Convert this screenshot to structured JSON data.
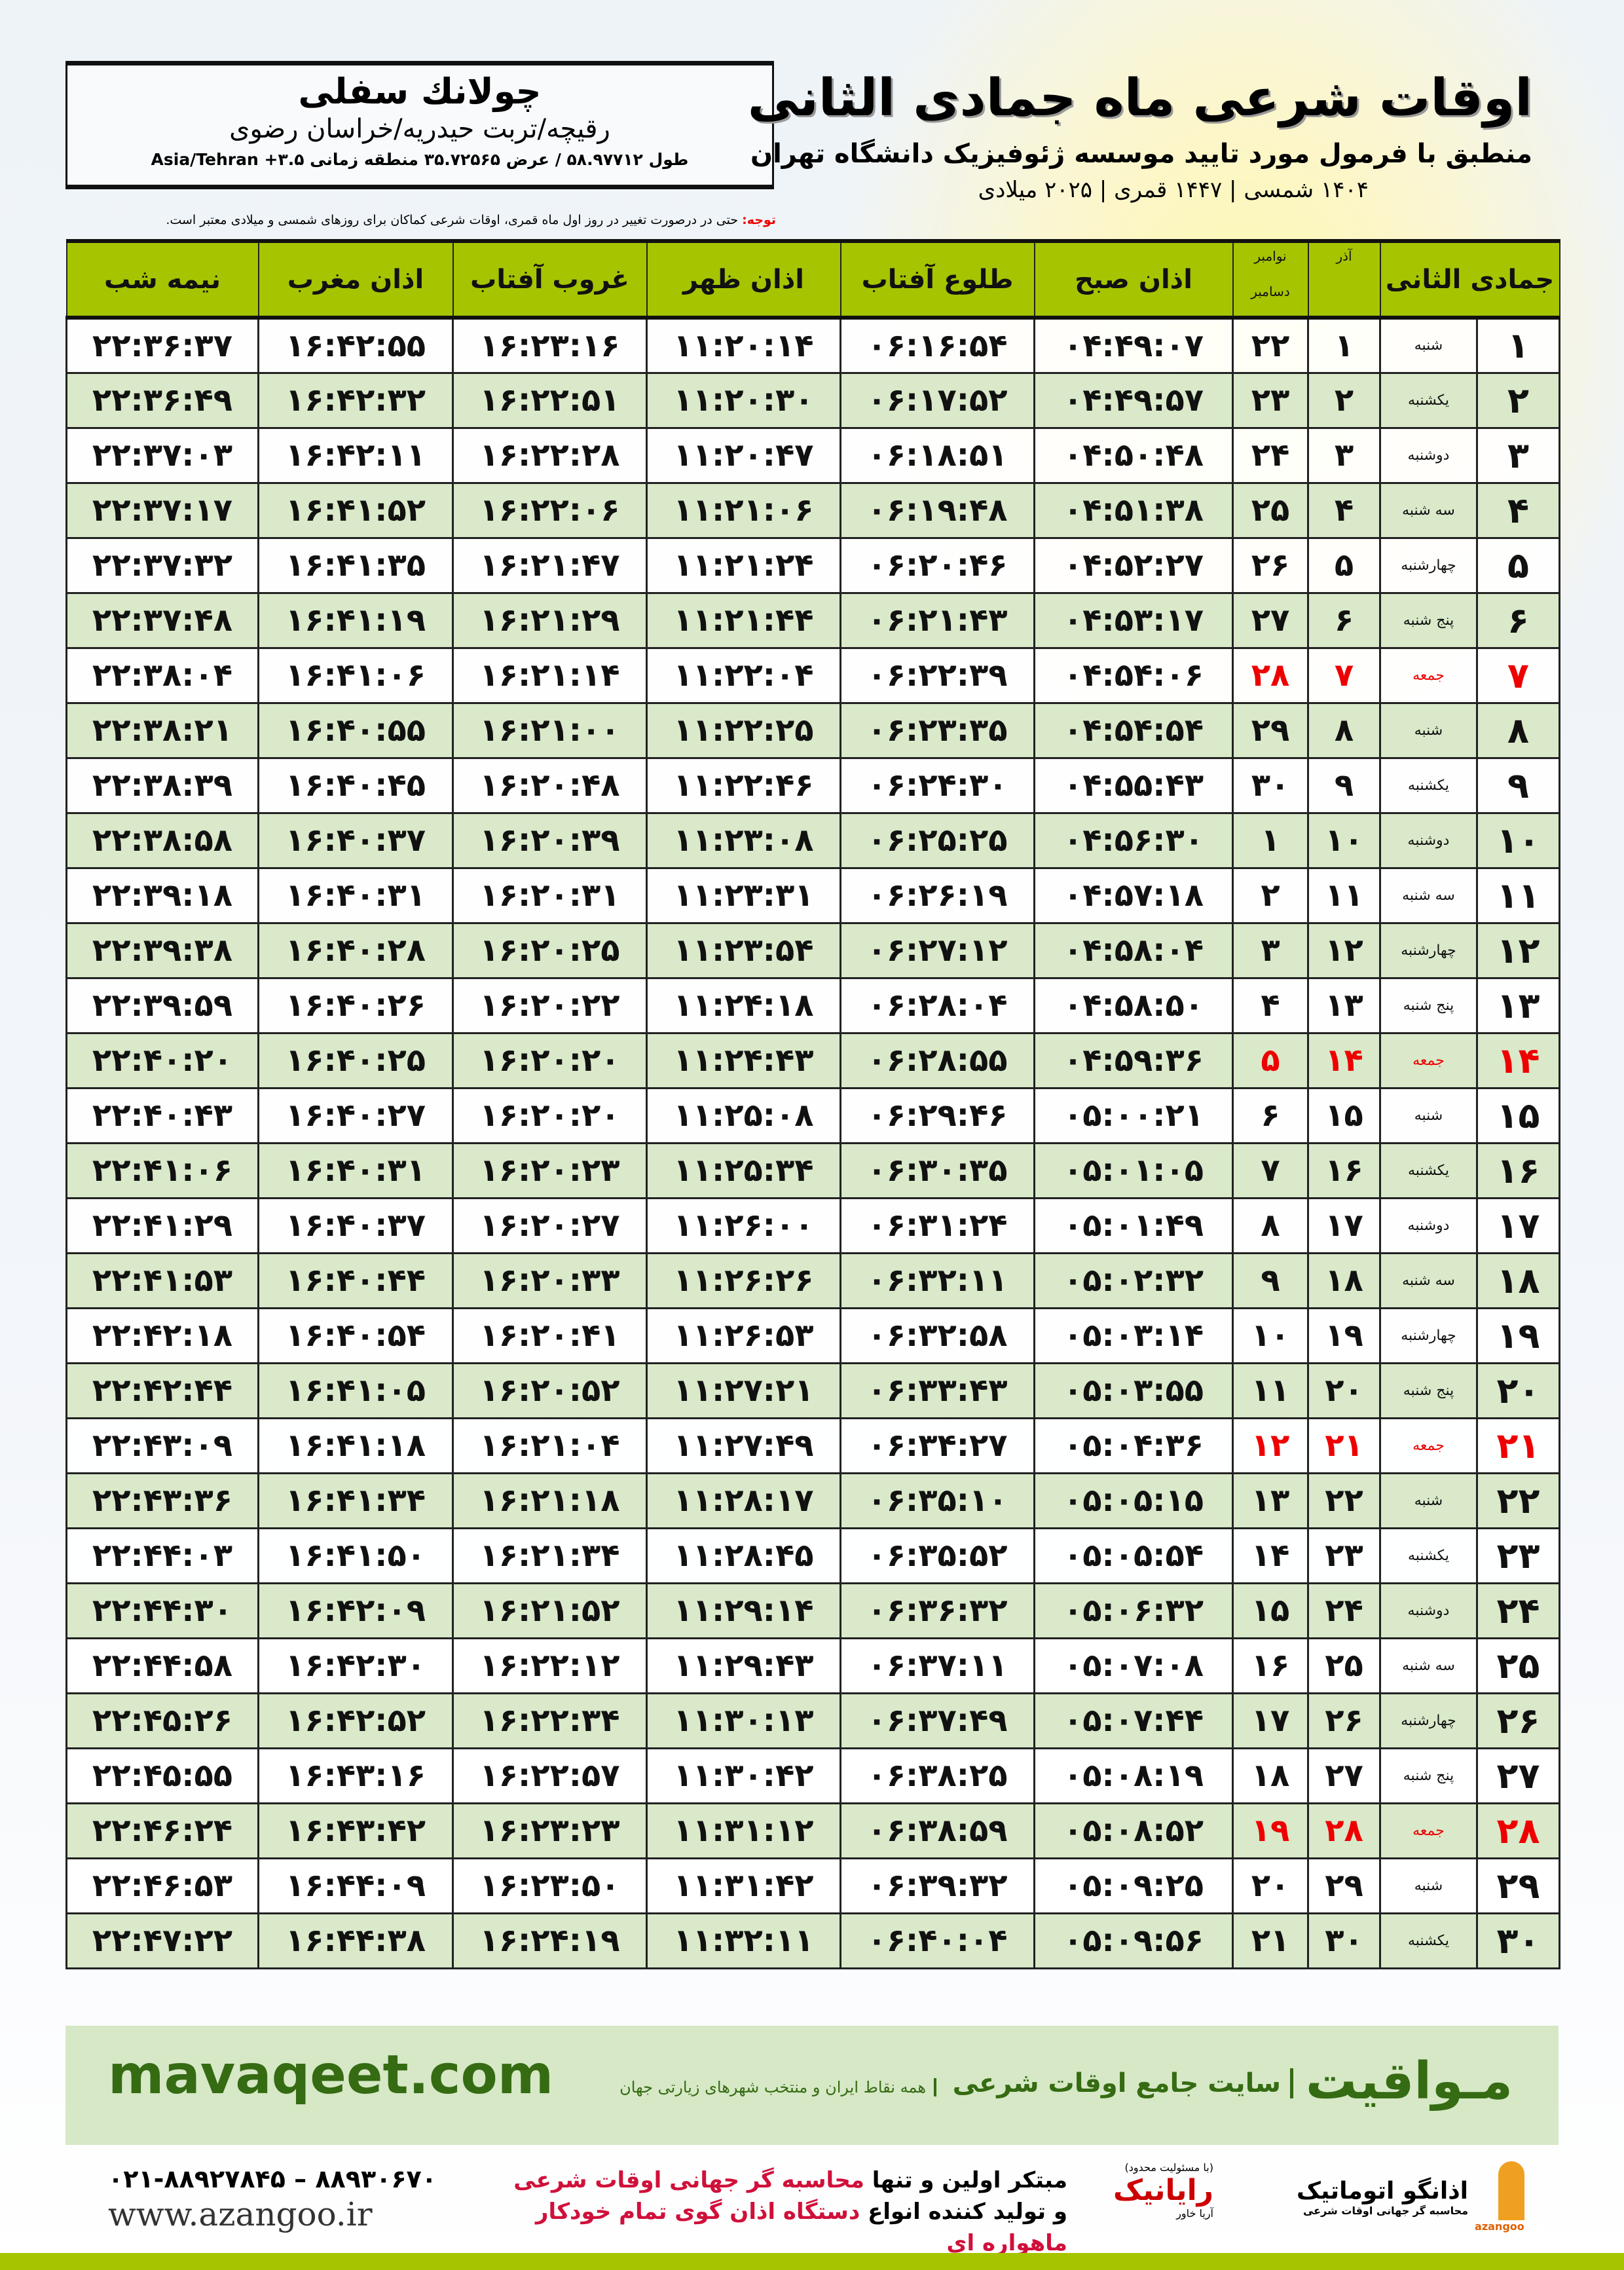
{
  "header": {
    "title": "اوقات شرعی ماه جمادی الثانی",
    "subtitle": "منطبق با فرمول مورد تایید موسسه ژئوفیزیک دانشگاه تهران",
    "years": "۱۴۰۴ شمسی | ۱۴۴۷ قمری | ۲۰۲۵ میلادی"
  },
  "location": {
    "city": "چولانك سفلی",
    "province": "رقیچه/تربت حیدریه/خراسان رضوی",
    "coords": "طول ۵۸.۹۷۷۱۲ / عرض ۳۵.۷۲۵۶۵ منطقه زمانی Asia/Tehran +۳.۵"
  },
  "note": {
    "label": "توجه:",
    "text": " حتی در درصورت تغییر در روز اول ماه قمری، اوقات شرعی کماکان برای روزهای شمسی و میلادی معتبر است."
  },
  "columns": {
    "hijri": "جمادی الثانی",
    "azar": "آذر",
    "greg_top": "نوامبر",
    "greg_bottom": "دسامبر",
    "fajr": "اذان صبح",
    "sunrise": "طلوع آفتاب",
    "dhuhr": "اذان ظهر",
    "sunset": "غروب آفتاب",
    "maghrib": "اذان مغرب",
    "midnight": "نیمه شب"
  },
  "holiday_color": "#e00000",
  "header_color": "#a6c400",
  "rows": [
    [
      "۱",
      "شنبه",
      "۱",
      "۲۲",
      "۰۴:۴۹:۰۷",
      "۰۶:۱۶:۵۴",
      "۱۱:۲۰:۱۴",
      "۱۶:۲۳:۱۶",
      "۱۶:۴۲:۵۵",
      "۲۲:۳۶:۳۷",
      false
    ],
    [
      "۲",
      "یکشنبه",
      "۲",
      "۲۳",
      "۰۴:۴۹:۵۷",
      "۰۶:۱۷:۵۲",
      "۱۱:۲۰:۳۰",
      "۱۶:۲۲:۵۱",
      "۱۶:۴۲:۳۲",
      "۲۲:۳۶:۴۹",
      false
    ],
    [
      "۳",
      "دوشنبه",
      "۳",
      "۲۴",
      "۰۴:۵۰:۴۸",
      "۰۶:۱۸:۵۱",
      "۱۱:۲۰:۴۷",
      "۱۶:۲۲:۲۸",
      "۱۶:۴۲:۱۱",
      "۲۲:۳۷:۰۳",
      false
    ],
    [
      "۴",
      "سه شنبه",
      "۴",
      "۲۵",
      "۰۴:۵۱:۳۸",
      "۰۶:۱۹:۴۸",
      "۱۱:۲۱:۰۶",
      "۱۶:۲۲:۰۶",
      "۱۶:۴۱:۵۲",
      "۲۲:۳۷:۱۷",
      false
    ],
    [
      "۵",
      "چهارشنبه",
      "۵",
      "۲۶",
      "۰۴:۵۲:۲۷",
      "۰۶:۲۰:۴۶",
      "۱۱:۲۱:۲۴",
      "۱۶:۲۱:۴۷",
      "۱۶:۴۱:۳۵",
      "۲۲:۳۷:۳۲",
      false
    ],
    [
      "۶",
      "پنج شنبه",
      "۶",
      "۲۷",
      "۰۴:۵۳:۱۷",
      "۰۶:۲۱:۴۳",
      "۱۱:۲۱:۴۴",
      "۱۶:۲۱:۲۹",
      "۱۶:۴۱:۱۹",
      "۲۲:۳۷:۴۸",
      false
    ],
    [
      "۷",
      "جمعه",
      "۷",
      "۲۸",
      "۰۴:۵۴:۰۶",
      "۰۶:۲۲:۳۹",
      "۱۱:۲۲:۰۴",
      "۱۶:۲۱:۱۴",
      "۱۶:۴۱:۰۶",
      "۲۲:۳۸:۰۴",
      true
    ],
    [
      "۸",
      "شنبه",
      "۸",
      "۲۹",
      "۰۴:۵۴:۵۴",
      "۰۶:۲۳:۳۵",
      "۱۱:۲۲:۲۵",
      "۱۶:۲۱:۰۰",
      "۱۶:۴۰:۵۵",
      "۲۲:۳۸:۲۱",
      false
    ],
    [
      "۹",
      "یکشنبه",
      "۹",
      "۳۰",
      "۰۴:۵۵:۴۳",
      "۰۶:۲۴:۳۰",
      "۱۱:۲۲:۴۶",
      "۱۶:۲۰:۴۸",
      "۱۶:۴۰:۴۵",
      "۲۲:۳۸:۳۹",
      false
    ],
    [
      "۱۰",
      "دوشنبه",
      "۱۰",
      "۱",
      "۰۴:۵۶:۳۰",
      "۰۶:۲۵:۲۵",
      "۱۱:۲۳:۰۸",
      "۱۶:۲۰:۳۹",
      "۱۶:۴۰:۳۷",
      "۲۲:۳۸:۵۸",
      false
    ],
    [
      "۱۱",
      "سه شنبه",
      "۱۱",
      "۲",
      "۰۴:۵۷:۱۸",
      "۰۶:۲۶:۱۹",
      "۱۱:۲۳:۳۱",
      "۱۶:۲۰:۳۱",
      "۱۶:۴۰:۳۱",
      "۲۲:۳۹:۱۸",
      false
    ],
    [
      "۱۲",
      "چهارشنبه",
      "۱۲",
      "۳",
      "۰۴:۵۸:۰۴",
      "۰۶:۲۷:۱۲",
      "۱۱:۲۳:۵۴",
      "۱۶:۲۰:۲۵",
      "۱۶:۴۰:۲۸",
      "۲۲:۳۹:۳۸",
      false
    ],
    [
      "۱۳",
      "پنج شنبه",
      "۱۳",
      "۴",
      "۰۴:۵۸:۵۰",
      "۰۶:۲۸:۰۴",
      "۱۱:۲۴:۱۸",
      "۱۶:۲۰:۲۲",
      "۱۶:۴۰:۲۶",
      "۲۲:۳۹:۵۹",
      false
    ],
    [
      "۱۴",
      "جمعه",
      "۱۴",
      "۵",
      "۰۴:۵۹:۳۶",
      "۰۶:۲۸:۵۵",
      "۱۱:۲۴:۴۳",
      "۱۶:۲۰:۲۰",
      "۱۶:۴۰:۲۵",
      "۲۲:۴۰:۲۰",
      true
    ],
    [
      "۱۵",
      "شنبه",
      "۱۵",
      "۶",
      "۰۵:۰۰:۲۱",
      "۰۶:۲۹:۴۶",
      "۱۱:۲۵:۰۸",
      "۱۶:۲۰:۲۰",
      "۱۶:۴۰:۲۷",
      "۲۲:۴۰:۴۳",
      false
    ],
    [
      "۱۶",
      "یکشنبه",
      "۱۶",
      "۷",
      "۰۵:۰۱:۰۵",
      "۰۶:۳۰:۳۵",
      "۱۱:۲۵:۳۴",
      "۱۶:۲۰:۲۳",
      "۱۶:۴۰:۳۱",
      "۲۲:۴۱:۰۶",
      false
    ],
    [
      "۱۷",
      "دوشنبه",
      "۱۷",
      "۸",
      "۰۵:۰۱:۴۹",
      "۰۶:۳۱:۲۴",
      "۱۱:۲۶:۰۰",
      "۱۶:۲۰:۲۷",
      "۱۶:۴۰:۳۷",
      "۲۲:۴۱:۲۹",
      false
    ],
    [
      "۱۸",
      "سه شنبه",
      "۱۸",
      "۹",
      "۰۵:۰۲:۳۲",
      "۰۶:۳۲:۱۱",
      "۱۱:۲۶:۲۶",
      "۱۶:۲۰:۳۳",
      "۱۶:۴۰:۴۴",
      "۲۲:۴۱:۵۳",
      false
    ],
    [
      "۱۹",
      "چهارشنبه",
      "۱۹",
      "۱۰",
      "۰۵:۰۳:۱۴",
      "۰۶:۳۲:۵۸",
      "۱۱:۲۶:۵۳",
      "۱۶:۲۰:۴۱",
      "۱۶:۴۰:۵۴",
      "۲۲:۴۲:۱۸",
      false
    ],
    [
      "۲۰",
      "پنج شنبه",
      "۲۰",
      "۱۱",
      "۰۵:۰۳:۵۵",
      "۰۶:۳۳:۴۳",
      "۱۱:۲۷:۲۱",
      "۱۶:۲۰:۵۲",
      "۱۶:۴۱:۰۵",
      "۲۲:۴۲:۴۴",
      false
    ],
    [
      "۲۱",
      "جمعه",
      "۲۱",
      "۱۲",
      "۰۵:۰۴:۳۶",
      "۰۶:۳۴:۲۷",
      "۱۱:۲۷:۴۹",
      "۱۶:۲۱:۰۴",
      "۱۶:۴۱:۱۸",
      "۲۲:۴۳:۰۹",
      true
    ],
    [
      "۲۲",
      "شنبه",
      "۲۲",
      "۱۳",
      "۰۵:۰۵:۱۵",
      "۰۶:۳۵:۱۰",
      "۱۱:۲۸:۱۷",
      "۱۶:۲۱:۱۸",
      "۱۶:۴۱:۳۴",
      "۲۲:۴۳:۳۶",
      false
    ],
    [
      "۲۳",
      "یکشنبه",
      "۲۳",
      "۱۴",
      "۰۵:۰۵:۵۴",
      "۰۶:۳۵:۵۲",
      "۱۱:۲۸:۴۵",
      "۱۶:۲۱:۳۴",
      "۱۶:۴۱:۵۰",
      "۲۲:۴۴:۰۳",
      false
    ],
    [
      "۲۴",
      "دوشنبه",
      "۲۴",
      "۱۵",
      "۰۵:۰۶:۳۲",
      "۰۶:۳۶:۳۲",
      "۱۱:۲۹:۱۴",
      "۱۶:۲۱:۵۲",
      "۱۶:۴۲:۰۹",
      "۲۲:۴۴:۳۰",
      false
    ],
    [
      "۲۵",
      "سه شنبه",
      "۲۵",
      "۱۶",
      "۰۵:۰۷:۰۸",
      "۰۶:۳۷:۱۱",
      "۱۱:۲۹:۴۳",
      "۱۶:۲۲:۱۲",
      "۱۶:۴۲:۳۰",
      "۲۲:۴۴:۵۸",
      false
    ],
    [
      "۲۶",
      "چهارشنبه",
      "۲۶",
      "۱۷",
      "۰۵:۰۷:۴۴",
      "۰۶:۳۷:۴۹",
      "۱۱:۳۰:۱۳",
      "۱۶:۲۲:۳۴",
      "۱۶:۴۲:۵۲",
      "۲۲:۴۵:۲۶",
      false
    ],
    [
      "۲۷",
      "پنج شنبه",
      "۲۷",
      "۱۸",
      "۰۵:۰۸:۱۹",
      "۰۶:۳۸:۲۵",
      "۱۱:۳۰:۴۲",
      "۱۶:۲۲:۵۷",
      "۱۶:۴۳:۱۶",
      "۲۲:۴۵:۵۵",
      false
    ],
    [
      "۲۸",
      "جمعه",
      "۲۸",
      "۱۹",
      "۰۵:۰۸:۵۲",
      "۰۶:۳۸:۵۹",
      "۱۱:۳۱:۱۲",
      "۱۶:۲۳:۲۳",
      "۱۶:۴۳:۴۲",
      "۲۲:۴۶:۲۴",
      true
    ],
    [
      "۲۹",
      "شنبه",
      "۲۹",
      "۲۰",
      "۰۵:۰۹:۲۵",
      "۰۶:۳۹:۳۲",
      "۱۱:۳۱:۴۲",
      "۱۶:۲۳:۵۰",
      "۱۶:۴۴:۰۹",
      "۲۲:۴۶:۵۳",
      false
    ],
    [
      "۳۰",
      "یکشنبه",
      "۳۰",
      "۲۱",
      "۰۵:۰۹:۵۶",
      "۰۶:۴۰:۰۴",
      "۱۱:۳۲:۱۱",
      "۱۶:۲۴:۱۹",
      "۱۶:۴۴:۳۸",
      "۲۲:۴۷:۲۲",
      false
    ]
  ],
  "footer": {
    "brand": "مـواقیت",
    "tagline": "سایت جامع اوقات شرعی",
    "tagline2": "همه نقاط ایران و منتخب شهرهای زیارتی جهان",
    "url": "mavaqeet.com",
    "phone": "۰۲۱-۸۸۹۲۷۸۴۵ – ۸۸۹۳۰۶۷۰",
    "website": "www.azangoo.ir",
    "promo1_a": "مبتکر اولین و تنها ",
    "promo1_b": "محاسبه گر جهانی اوقات شرعی",
    "promo2_a": "و تولید کننده انواع ",
    "promo2_b": "دستگاه اذان گوی تمام خودکار ماهواره ای",
    "logo_rayanik": "رایانیک",
    "logo_rayanik_sub": "آریا خاور",
    "logo_rayanik_note": "(با مسئولیت محدود)",
    "logo_azangoo": "اذانگو اتوماتیک",
    "logo_azangoo_sub": "محاسبه گر جهانی اوقات شرعی",
    "logo_azangoo_latin": "azangoo",
    "brand_color": "#356b12"
  }
}
